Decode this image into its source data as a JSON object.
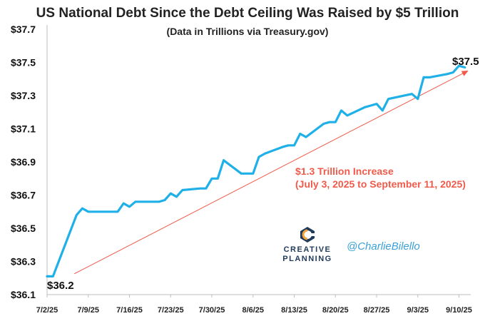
{
  "title": "US National Debt Since the Debt Ceiling Was Raised by $5 Trillion",
  "subtitle": "(Data in Trillions via Treasury.gov)",
  "annotation": {
    "line1": "$1.3 Trillion Increase",
    "line2": "(July 3, 2025 to September 11, 2025)"
  },
  "start_label": "$36.2",
  "end_label": "$37.5",
  "logo": {
    "line1": "CREATIVE",
    "line2": "PLANNING"
  },
  "handle": "@CharlieBilello",
  "colors": {
    "line": "#1fb0e8",
    "arrow": "#f05a4a",
    "logo_navy": "#1f3a5a",
    "logo_orange": "#f3a33a"
  },
  "chart_data": {
    "type": "line",
    "title": "US National Debt Since the Debt Ceiling Was Raised by $5 Trillion",
    "subtitle": "(Data in Trillions via Treasury.gov)",
    "xlabel": "",
    "ylabel": "",
    "y_tick_labels": [
      "$36.1",
      "$36.3",
      "$36.5",
      "$36.7",
      "$36.9",
      "$37.1",
      "$37.3",
      "$37.5",
      "$37.7"
    ],
    "y_ticks": [
      36.1,
      36.3,
      36.5,
      36.7,
      36.9,
      37.1,
      37.3,
      37.5,
      37.7
    ],
    "ylim": [
      36.1,
      37.7
    ],
    "x_tick_labels": [
      "7/2/25",
      "7/9/25",
      "7/16/25",
      "7/23/25",
      "7/30/25",
      "8/6/25",
      "8/13/25",
      "8/20/25",
      "8/27/25",
      "9/3/25",
      "9/10/25"
    ],
    "x_ticks": [
      "2025-07-02",
      "2025-07-09",
      "2025-07-16",
      "2025-07-23",
      "2025-07-30",
      "2025-08-06",
      "2025-08-13",
      "2025-08-20",
      "2025-08-27",
      "2025-09-03",
      "2025-09-10"
    ],
    "xlim": [
      "2025-07-02",
      "2025-09-12"
    ],
    "grid": false,
    "series": [
      {
        "x": [
          "2025-07-02",
          "2025-07-03",
          "2025-07-07",
          "2025-07-08",
          "2025-07-09",
          "2025-07-10",
          "2025-07-11",
          "2025-07-14",
          "2025-07-15",
          "2025-07-16",
          "2025-07-17",
          "2025-07-18",
          "2025-07-21",
          "2025-07-22",
          "2025-07-23",
          "2025-07-24",
          "2025-07-25",
          "2025-07-28",
          "2025-07-29",
          "2025-07-30",
          "2025-07-31",
          "2025-08-01",
          "2025-08-04",
          "2025-08-05",
          "2025-08-06",
          "2025-08-07",
          "2025-08-08",
          "2025-08-11",
          "2025-08-12",
          "2025-08-13",
          "2025-08-14",
          "2025-08-15",
          "2025-08-18",
          "2025-08-19",
          "2025-08-20",
          "2025-08-21",
          "2025-08-22",
          "2025-08-25",
          "2025-08-26",
          "2025-08-27",
          "2025-08-28",
          "2025-08-29",
          "2025-09-02",
          "2025-09-03",
          "2025-09-04",
          "2025-09-05",
          "2025-09-08",
          "2025-09-09",
          "2025-09-10",
          "2025-09-11"
        ],
        "values": [
          36.21,
          36.21,
          36.58,
          36.62,
          36.6,
          36.6,
          36.6,
          36.6,
          36.65,
          36.63,
          36.66,
          36.66,
          36.66,
          36.67,
          36.71,
          36.69,
          36.73,
          36.74,
          36.74,
          36.8,
          36.8,
          36.91,
          36.83,
          36.83,
          36.83,
          36.93,
          36.95,
          36.99,
          37.0,
          37.0,
          37.07,
          37.05,
          37.13,
          37.14,
          37.14,
          37.21,
          37.18,
          37.23,
          37.24,
          37.25,
          37.21,
          37.28,
          37.31,
          37.28,
          37.41,
          37.41,
          37.43,
          37.44,
          37.48,
          37.47
        ]
      }
    ],
    "trend_arrow": {
      "from": [
        "2025-07-03",
        36.2
      ],
      "to": [
        "2025-09-11",
        37.47
      ]
    }
  }
}
